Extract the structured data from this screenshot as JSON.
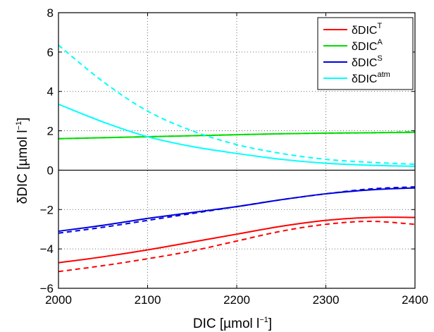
{
  "chart_data": {
    "type": "line",
    "xlabel": "DIC [µmol l",
    "xlabel_sup": "−1",
    "xlabel_end": "]",
    "ylabel": "δDIC [µmol l",
    "ylabel_sup": "−1",
    "ylabel_end": "]",
    "xlim": [
      2000,
      2400
    ],
    "ylim": [
      -6,
      8
    ],
    "xticks": [
      2000,
      2100,
      2200,
      2300,
      2400
    ],
    "yticks": [
      -6,
      -4,
      -2,
      0,
      2,
      4,
      6,
      8
    ],
    "grid": "dotted",
    "zero_line": true,
    "legend_position": "top-right",
    "x": [
      2000,
      2050,
      2100,
      2150,
      2200,
      2250,
      2300,
      2350,
      2400
    ],
    "series": [
      {
        "name": "δDIC",
        "sup": "T",
        "color": "#ff0000",
        "style": "solid",
        "values": [
          -4.7,
          -4.4,
          -4.05,
          -3.65,
          -3.25,
          -2.85,
          -2.55,
          -2.4,
          -2.4
        ]
      },
      {
        "name": "",
        "color": "#ff0000",
        "style": "dashed",
        "values": [
          -5.15,
          -4.85,
          -4.5,
          -4.1,
          -3.6,
          -3.1,
          -2.75,
          -2.6,
          -2.75
        ]
      },
      {
        "name": "δDIC",
        "sup": "A",
        "color": "#00dd00",
        "style": "solid",
        "values": [
          1.6,
          1.65,
          1.7,
          1.75,
          1.8,
          1.85,
          1.88,
          1.9,
          1.92
        ]
      },
      {
        "name": "",
        "color": "#00dd00",
        "style": "dashed",
        "values": [
          1.6,
          1.65,
          1.7,
          1.75,
          1.8,
          1.85,
          1.88,
          1.9,
          1.95
        ]
      },
      {
        "name": "δDIC",
        "sup": "S",
        "color": "#0000dd",
        "style": "solid",
        "values": [
          -3.1,
          -2.8,
          -2.45,
          -2.15,
          -1.85,
          -1.5,
          -1.2,
          -1.0,
          -0.9
        ]
      },
      {
        "name": "",
        "color": "#0000dd",
        "style": "dashed",
        "values": [
          -3.2,
          -2.9,
          -2.55,
          -2.2,
          -1.85,
          -1.5,
          -1.2,
          -0.95,
          -0.85
        ]
      },
      {
        "name": "δDIC",
        "sup": "atm",
        "color": "#00ffff",
        "style": "solid",
        "values": [
          3.35,
          2.45,
          1.7,
          1.2,
          0.85,
          0.55,
          0.35,
          0.25,
          0.2
        ]
      },
      {
        "name": "",
        "color": "#00ffff",
        "style": "dashed",
        "values": [
          6.35,
          4.5,
          3.0,
          2.0,
          1.3,
          0.85,
          0.55,
          0.4,
          0.3
        ]
      }
    ]
  }
}
